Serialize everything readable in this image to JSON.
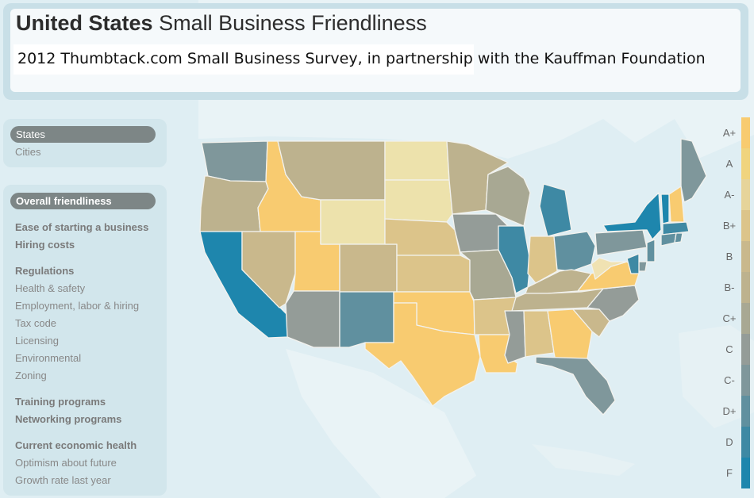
{
  "header": {
    "title_bold": "United States",
    "title_rest": "Small Business Friendliness",
    "subtitle": "2012 Thumbtack.com Small Business Survey, in partnership with the Kauffman Foundation"
  },
  "view_nav": {
    "items": [
      "States",
      "Cities"
    ],
    "active": "States"
  },
  "metric_nav": {
    "active": "Overall friendliness",
    "items": [
      {
        "label": "Overall friendliness",
        "bold": true
      },
      {
        "label": "Ease of starting a business",
        "bold": true
      },
      {
        "label": "Hiring costs",
        "bold": true
      },
      {
        "label": "Regulations",
        "bold": true
      },
      {
        "label": "Health & safety",
        "bold": false
      },
      {
        "label": "Employment, labor & hiring",
        "bold": false
      },
      {
        "label": "Tax code",
        "bold": false
      },
      {
        "label": "Licensing",
        "bold": false
      },
      {
        "label": "Environmental",
        "bold": false
      },
      {
        "label": "Zoning",
        "bold": false
      },
      {
        "label": "Training programs",
        "bold": true
      },
      {
        "label": "Networking programs",
        "bold": true
      },
      {
        "label": "Current economic health",
        "bold": true
      },
      {
        "label": "Optimism about future",
        "bold": false
      },
      {
        "label": "Growth rate last year",
        "bold": false
      }
    ]
  },
  "legend": [
    {
      "grade": "A+",
      "color": "#f8cb70"
    },
    {
      "grade": "A",
      "color": "#f0d47e"
    },
    {
      "grade": "A-",
      "color": "#e6d49a"
    },
    {
      "grade": "B+",
      "color": "#dcc48a"
    },
    {
      "grade": "B",
      "color": "#c9b88c"
    },
    {
      "grade": "B-",
      "color": "#bdb28e"
    },
    {
      "grade": "C+",
      "color": "#a8a893"
    },
    {
      "grade": "C",
      "color": "#949c98"
    },
    {
      "grade": "C-",
      "color": "#7f979b"
    },
    {
      "grade": "D+",
      "color": "#60909f"
    },
    {
      "grade": "D",
      "color": "#3e89a4"
    },
    {
      "grade": "F",
      "color": "#1e86ad"
    }
  ],
  "states": [
    {
      "name": "Washington",
      "color": "#7f979b"
    },
    {
      "name": "Oregon",
      "color": "#bdb28e"
    },
    {
      "name": "California",
      "color": "#1e86ad"
    },
    {
      "name": "Idaho",
      "color": "#f8cb70"
    },
    {
      "name": "Nevada",
      "color": "#c9b88c"
    },
    {
      "name": "Utah",
      "color": "#f8cb70"
    },
    {
      "name": "Arizona",
      "color": "#949c98"
    },
    {
      "name": "Montana",
      "color": "#bdb28e"
    },
    {
      "name": "Wyoming",
      "color": "#ede2ac"
    },
    {
      "name": "Colorado",
      "color": "#c9b88c"
    },
    {
      "name": "New Mexico",
      "color": "#60909f"
    },
    {
      "name": "North Dakota",
      "color": "#ede2ac"
    },
    {
      "name": "South Dakota",
      "color": "#ede2ac"
    },
    {
      "name": "Nebraska",
      "color": "#dcc48a"
    },
    {
      "name": "Kansas",
      "color": "#dcc48a"
    },
    {
      "name": "Oklahoma",
      "color": "#f8cb70"
    },
    {
      "name": "Texas",
      "color": "#f8cb70"
    },
    {
      "name": "Minnesota",
      "color": "#bdb28e"
    },
    {
      "name": "Iowa",
      "color": "#949c98"
    },
    {
      "name": "Missouri",
      "color": "#a8a893"
    },
    {
      "name": "Arkansas",
      "color": "#dcc48a"
    },
    {
      "name": "Louisiana",
      "color": "#f8cb70"
    },
    {
      "name": "Wisconsin",
      "color": "#a8a893"
    },
    {
      "name": "Illinois",
      "color": "#3e89a4"
    },
    {
      "name": "Michigan",
      "color": "#3e89a4"
    },
    {
      "name": "Indiana",
      "color": "#dcc48a"
    },
    {
      "name": "Ohio",
      "color": "#60909f"
    },
    {
      "name": "Kentucky",
      "color": "#bdb28e"
    },
    {
      "name": "Tennessee",
      "color": "#bdb28e"
    },
    {
      "name": "Mississippi",
      "color": "#949c98"
    },
    {
      "name": "Alabama",
      "color": "#dcc48a"
    },
    {
      "name": "Georgia",
      "color": "#f8cb70"
    },
    {
      "name": "Florida",
      "color": "#7f979b"
    },
    {
      "name": "South Carolina",
      "color": "#c9b88c"
    },
    {
      "name": "North Carolina",
      "color": "#949c98"
    },
    {
      "name": "Virginia",
      "color": "#f8cb70"
    },
    {
      "name": "West Virginia",
      "color": "#f0e2b2"
    },
    {
      "name": "Pennsylvania",
      "color": "#7f979b"
    },
    {
      "name": "New York",
      "color": "#1e86ad"
    },
    {
      "name": "Maine",
      "color": "#7f979b"
    },
    {
      "name": "Vermont",
      "color": "#1e86ad"
    },
    {
      "name": "New Hampshire",
      "color": "#f8cb70"
    },
    {
      "name": "Massachusetts",
      "color": "#3e89a4"
    },
    {
      "name": "Connecticut",
      "color": "#60909f"
    },
    {
      "name": "Rhode Island",
      "color": "#60909f"
    },
    {
      "name": "New Jersey",
      "color": "#60909f"
    },
    {
      "name": "Delaware",
      "color": "#7f979b"
    },
    {
      "name": "Maryland",
      "color": "#3e89a4"
    }
  ]
}
